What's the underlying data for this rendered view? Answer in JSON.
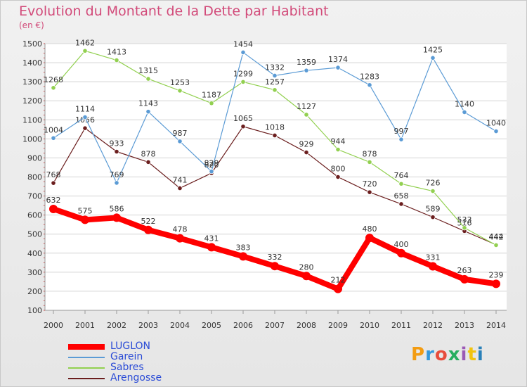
{
  "title": "Evolution du Montant de la Dette par Habitant",
  "subtitle": "(en €)",
  "logo": {
    "text": "Proxiti",
    "colors": [
      "#f39c12",
      "#3498db",
      "#e74c3c",
      "#27ae60",
      "#9b59b6",
      "#f1c40f",
      "#2980b9"
    ]
  },
  "chart_data": {
    "type": "line",
    "title": "Evolution du Montant de la Dette par Habitant",
    "ylabel": "(en €)",
    "xlabel": "",
    "x": [
      "2000",
      "2001",
      "2002",
      "2003",
      "2004",
      "2005",
      "2006",
      "2007",
      "2008",
      "2009",
      "2010",
      "2011",
      "2012",
      "2013",
      "2014"
    ],
    "ylim": [
      100,
      1500
    ],
    "yticks": [
      100,
      200,
      300,
      400,
      500,
      600,
      700,
      800,
      900,
      1000,
      1100,
      1200,
      1300,
      1400,
      1500
    ],
    "grid": "horizontal",
    "legend": "bottom-left",
    "series": [
      {
        "name": "LUGLON",
        "color": "#ff0000",
        "values": [
          632,
          575,
          586,
          522,
          478,
          431,
          383,
          332,
          280,
          212,
          480,
          400,
          331,
          263,
          239
        ]
      },
      {
        "name": "Garein",
        "color": "#5b9bd5",
        "values": [
          1004,
          1114,
          769,
          1143,
          987,
          829,
          1454,
          1332,
          1359,
          1374,
          1283,
          997,
          1425,
          1140,
          1040
        ]
      },
      {
        "name": "Sabres",
        "color": "#92d050",
        "values": [
          1268,
          1462,
          1413,
          1315,
          1253,
          1187,
          1299,
          1257,
          1127,
          944,
          878,
          764,
          726,
          533,
          442
        ]
      },
      {
        "name": "Arengosse",
        "color": "#6b1e1e",
        "values": [
          768,
          1056,
          933,
          878,
          741,
          820,
          1065,
          1018,
          929,
          800,
          720,
          658,
          589,
          516,
          444
        ]
      }
    ]
  }
}
